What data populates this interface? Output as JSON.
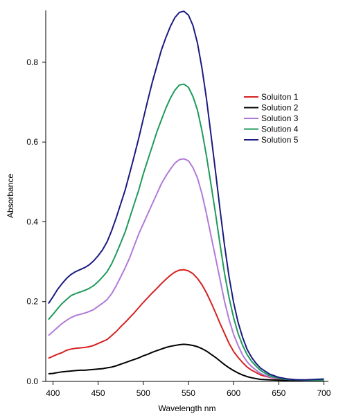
{
  "chart_data": {
    "type": "line",
    "title": "",
    "xlabel": "Wavelength nm",
    "ylabel": "Absorbance",
    "xlim": [
      392,
      705
    ],
    "ylim": [
      0,
      0.93
    ],
    "x_ticks": [
      400,
      450,
      500,
      550,
      600,
      650,
      700
    ],
    "y_ticks": [
      0.0,
      0.2,
      0.4,
      0.6,
      0.8
    ],
    "y_tick_labels": [
      "0.0",
      "0.2",
      "0.4",
      "0.6",
      "0.8"
    ],
    "x_tick_labels": [
      "400",
      "450",
      "500",
      "550",
      "600",
      "650",
      "700"
    ],
    "grid": false,
    "legend_position": "right",
    "x": [
      395,
      400,
      405,
      410,
      415,
      420,
      425,
      430,
      435,
      440,
      445,
      450,
      455,
      460,
      465,
      470,
      475,
      480,
      485,
      490,
      495,
      500,
      505,
      510,
      515,
      520,
      525,
      530,
      535,
      540,
      545,
      550,
      555,
      560,
      565,
      570,
      575,
      580,
      585,
      590,
      595,
      600,
      605,
      610,
      615,
      620,
      625,
      630,
      640,
      650,
      660,
      670,
      680,
      690,
      700
    ],
    "series": [
      {
        "name": "Soluiton 1",
        "color": "#d62020",
        "values": [
          0.058,
          0.063,
          0.068,
          0.072,
          0.078,
          0.081,
          0.083,
          0.084,
          0.085,
          0.087,
          0.09,
          0.095,
          0.1,
          0.105,
          0.115,
          0.125,
          0.137,
          0.148,
          0.16,
          0.172,
          0.185,
          0.198,
          0.21,
          0.222,
          0.233,
          0.245,
          0.256,
          0.266,
          0.274,
          0.279,
          0.28,
          0.277,
          0.27,
          0.258,
          0.242,
          0.222,
          0.198,
          0.172,
          0.145,
          0.12,
          0.095,
          0.075,
          0.06,
          0.047,
          0.036,
          0.028,
          0.022,
          0.016,
          0.01,
          0.006,
          0.004,
          0.003,
          0.003,
          0.003,
          0.003
        ]
      },
      {
        "name": "Solution 2",
        "color": "#000000",
        "values": [
          0.019,
          0.02,
          0.022,
          0.024,
          0.025,
          0.026,
          0.027,
          0.028,
          0.028,
          0.029,
          0.03,
          0.031,
          0.032,
          0.034,
          0.036,
          0.039,
          0.043,
          0.047,
          0.051,
          0.055,
          0.059,
          0.064,
          0.068,
          0.073,
          0.077,
          0.081,
          0.085,
          0.088,
          0.09,
          0.092,
          0.093,
          0.092,
          0.09,
          0.087,
          0.082,
          0.076,
          0.068,
          0.06,
          0.051,
          0.042,
          0.034,
          0.027,
          0.021,
          0.016,
          0.012,
          0.009,
          0.007,
          0.005,
          0.004,
          0.003,
          0.002,
          0.002,
          0.002,
          0.002,
          0.002
        ]
      },
      {
        "name": "Solution 3",
        "color": "#b07ad8",
        "values": [
          0.115,
          0.125,
          0.135,
          0.145,
          0.153,
          0.16,
          0.165,
          0.168,
          0.171,
          0.175,
          0.18,
          0.188,
          0.196,
          0.205,
          0.22,
          0.24,
          0.262,
          0.285,
          0.31,
          0.34,
          0.37,
          0.395,
          0.42,
          0.445,
          0.47,
          0.495,
          0.515,
          0.532,
          0.547,
          0.556,
          0.558,
          0.553,
          0.536,
          0.51,
          0.47,
          0.42,
          0.365,
          0.31,
          0.255,
          0.2,
          0.155,
          0.118,
          0.09,
          0.066,
          0.049,
          0.037,
          0.028,
          0.02,
          0.011,
          0.007,
          0.005,
          0.004,
          0.003,
          0.003,
          0.003
        ]
      },
      {
        "name": "Solution 4",
        "color": "#1e9a5a",
        "values": [
          0.155,
          0.168,
          0.182,
          0.195,
          0.205,
          0.215,
          0.22,
          0.224,
          0.228,
          0.233,
          0.24,
          0.25,
          0.262,
          0.275,
          0.295,
          0.32,
          0.347,
          0.375,
          0.41,
          0.445,
          0.48,
          0.52,
          0.555,
          0.59,
          0.625,
          0.655,
          0.685,
          0.71,
          0.73,
          0.743,
          0.745,
          0.737,
          0.714,
          0.68,
          0.628,
          0.565,
          0.494,
          0.42,
          0.343,
          0.27,
          0.21,
          0.16,
          0.12,
          0.09,
          0.067,
          0.05,
          0.038,
          0.027,
          0.014,
          0.008,
          0.005,
          0.004,
          0.003,
          0.003,
          0.003
        ]
      },
      {
        "name": "Solution 5",
        "color": "#1a1a80",
        "values": [
          0.195,
          0.212,
          0.23,
          0.245,
          0.258,
          0.268,
          0.275,
          0.28,
          0.285,
          0.292,
          0.302,
          0.315,
          0.33,
          0.35,
          0.378,
          0.41,
          0.445,
          0.48,
          0.522,
          0.565,
          0.61,
          0.658,
          0.705,
          0.75,
          0.79,
          0.83,
          0.862,
          0.89,
          0.912,
          0.925,
          0.928,
          0.918,
          0.892,
          0.848,
          0.785,
          0.708,
          0.618,
          0.525,
          0.43,
          0.34,
          0.262,
          0.198,
          0.148,
          0.11,
          0.08,
          0.06,
          0.045,
          0.033,
          0.018,
          0.01,
          0.006,
          0.004,
          0.004,
          0.005,
          0.006
        ]
      }
    ]
  }
}
